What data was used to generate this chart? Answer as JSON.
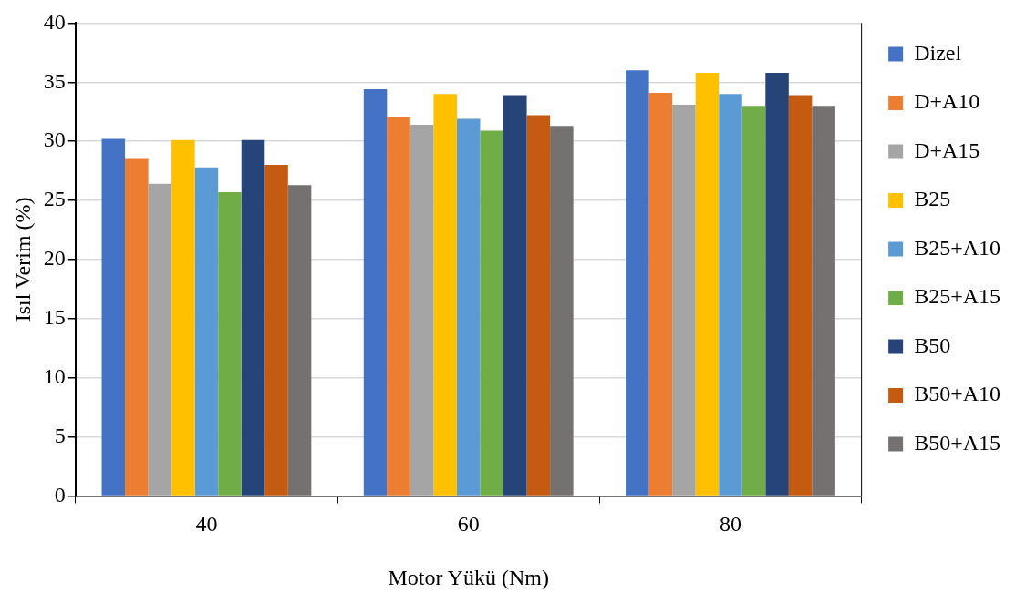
{
  "chart_data": {
    "type": "bar",
    "xlabel": "Motor Yükü (Nm)",
    "ylabel": "Isıl Verim (%)",
    "categories": [
      "40",
      "60",
      "80"
    ],
    "series": [
      {
        "name": "Dizel",
        "color": "#4472c4",
        "values": [
          30.2,
          34.4,
          36.0
        ]
      },
      {
        "name": "D+A10",
        "color": "#ed7d31",
        "values": [
          28.5,
          32.1,
          34.1
        ]
      },
      {
        "name": "D+A15",
        "color": "#a5a5a5",
        "values": [
          26.4,
          31.4,
          33.1
        ]
      },
      {
        "name": "B25",
        "color": "#ffc000",
        "values": [
          30.1,
          34.0,
          35.8
        ]
      },
      {
        "name": "B25+A10",
        "color": "#5b9bd5",
        "values": [
          27.8,
          31.9,
          34.0
        ]
      },
      {
        "name": "B25+A15",
        "color": "#70ad47",
        "values": [
          25.7,
          30.9,
          33.0
        ]
      },
      {
        "name": "B50",
        "color": "#264478",
        "values": [
          30.1,
          33.9,
          35.8
        ]
      },
      {
        "name": "B50+A10",
        "color": "#c55a11",
        "values": [
          28.0,
          32.2,
          33.9
        ]
      },
      {
        "name": "B50+A15",
        "color": "#767171",
        "values": [
          26.3,
          31.3,
          33.0
        ]
      }
    ],
    "ylim": [
      0,
      40
    ],
    "yticks": [
      0,
      5,
      10,
      15,
      20,
      25,
      30,
      35,
      40
    ],
    "grid": "y",
    "legend": "right"
  }
}
